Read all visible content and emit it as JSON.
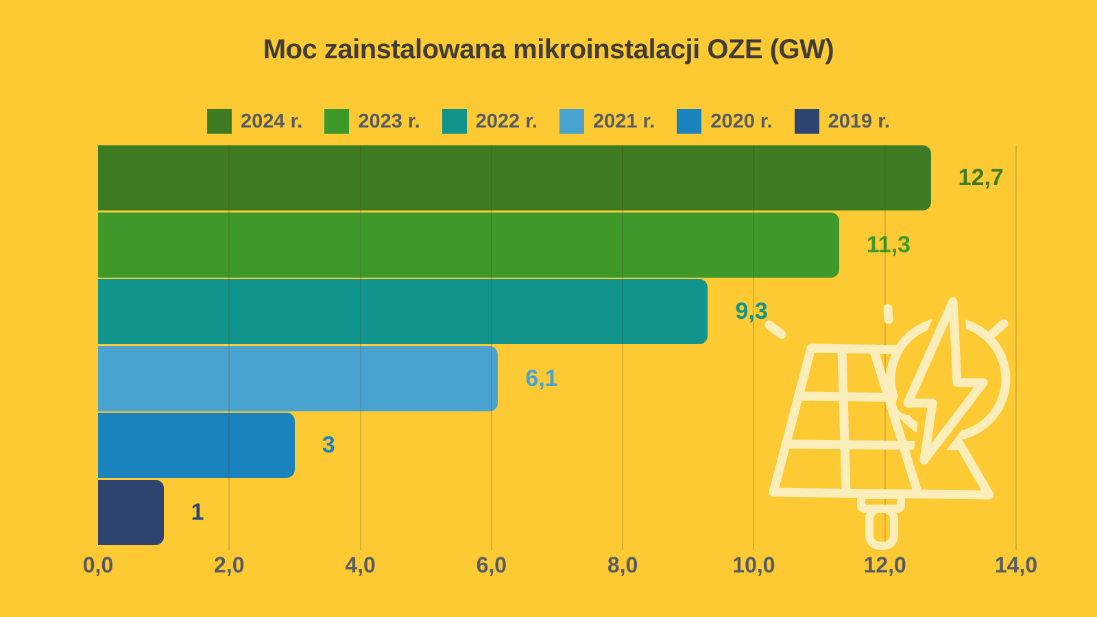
{
  "theme": {
    "--bg": "#fdca33",
    "--title": "#403d39",
    "--gray": "#575c64",
    "--grid": "rgba(70,60,20,0.18)",
    "--icon": "#fceeba"
  },
  "chart_data": {
    "type": "bar",
    "orientation": "horizontal",
    "title": "Moc zainstalowana mikroinstalacji OZE (GW)",
    "categories": [
      "2024 r.",
      "2023 r.",
      "2022 r.",
      "2021 r.",
      "2020 r.",
      "2019 r."
    ],
    "values": [
      12.7,
      11.3,
      9.3,
      6.1,
      3,
      1
    ],
    "value_labels": [
      "12,7",
      "11,3",
      "9,3",
      "6,1",
      "3",
      "1"
    ],
    "colors": [
      "#3d7c23",
      "#3e992a",
      "#10948c",
      "#4aa2d1",
      "#1a82bd",
      "#2e4470"
    ],
    "xlim": [
      0,
      14
    ],
    "x_ticks": [
      "0,0",
      "2,0",
      "4,0",
      "6,0",
      "8,0",
      "10,0",
      "12,0",
      "14,0"
    ],
    "legend_position": "top",
    "grid": "vertical",
    "icon": "solar-panel-lightning"
  }
}
